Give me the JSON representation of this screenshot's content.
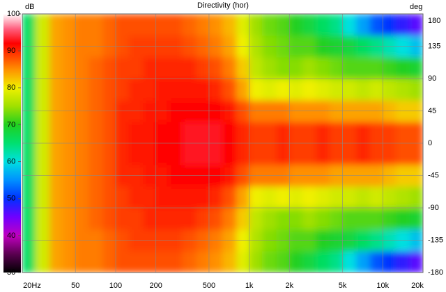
{
  "chart_data": {
    "type": "heatmap",
    "title": "Directivity (hor)",
    "colorbar_label": "dB",
    "y_label": "deg",
    "xscale": "log",
    "grid": true,
    "x_edges": [
      20,
      25,
      32,
      40,
      50,
      63,
      80,
      100,
      125,
      160,
      200,
      250,
      315,
      400,
      500,
      630,
      800,
      1000,
      1250,
      1600,
      2000,
      2500,
      3150,
      4000,
      5000,
      6300,
      8000,
      10000,
      12500,
      16000,
      20000
    ],
    "y_edges": [
      -180,
      -150,
      -120,
      -90,
      -60,
      -30,
      0,
      30,
      60,
      90,
      120,
      150,
      180
    ],
    "z": [
      [
        66,
        78,
        84,
        85,
        86,
        86,
        87,
        88,
        88,
        88,
        88,
        88,
        87,
        86,
        85,
        83,
        79,
        75,
        73,
        72,
        70,
        68,
        66,
        64,
        60,
        56,
        52,
        50,
        48,
        46
      ],
      [
        66,
        78,
        84,
        85,
        86,
        86,
        87,
        88,
        89,
        89,
        89,
        89,
        88,
        87,
        86,
        84,
        80,
        76,
        74,
        73,
        72,
        72,
        70,
        69,
        68,
        66,
        64,
        62,
        60,
        58
      ],
      [
        66,
        78,
        84,
        85,
        86,
        87,
        88,
        89,
        89,
        90,
        90,
        90,
        90,
        89,
        88,
        86,
        82,
        77,
        75,
        74,
        74,
        75,
        74,
        73,
        72,
        72,
        72,
        71,
        70,
        69
      ],
      [
        66,
        78,
        84,
        85,
        86,
        87,
        88,
        89,
        90,
        90,
        91,
        91,
        91,
        91,
        90,
        88,
        84,
        80,
        79,
        80,
        79,
        80,
        79,
        78,
        78,
        77,
        78,
        77,
        76,
        75
      ],
      [
        66,
        78,
        84,
        85,
        86,
        87,
        88,
        90,
        90,
        91,
        91,
        92,
        92,
        92,
        92,
        91,
        88,
        86,
        86,
        86,
        85,
        85,
        85,
        84,
        84,
        84,
        84,
        83,
        82,
        82
      ],
      [
        66,
        78,
        84,
        85,
        86,
        87,
        88,
        90,
        91,
        91,
        92,
        92,
        93,
        93,
        93,
        92,
        90,
        89,
        89,
        90,
        89,
        89,
        90,
        89,
        89,
        90,
        89,
        89,
        88,
        88
      ],
      [
        66,
        78,
        84,
        85,
        86,
        87,
        88,
        90,
        91,
        91,
        92,
        92,
        93,
        93,
        93,
        92,
        90,
        89,
        89,
        90,
        89,
        89,
        90,
        89,
        89,
        90,
        89,
        89,
        88,
        88
      ],
      [
        66,
        78,
        84,
        85,
        86,
        87,
        88,
        90,
        90,
        91,
        91,
        92,
        92,
        92,
        92,
        91,
        88,
        86,
        86,
        86,
        85,
        85,
        85,
        84,
        84,
        84,
        84,
        83,
        82,
        82
      ],
      [
        66,
        78,
        84,
        85,
        86,
        87,
        88,
        89,
        90,
        90,
        91,
        91,
        91,
        91,
        90,
        88,
        84,
        80,
        79,
        80,
        79,
        80,
        79,
        78,
        78,
        77,
        78,
        77,
        76,
        75
      ],
      [
        66,
        78,
        84,
        85,
        86,
        87,
        88,
        89,
        89,
        90,
        90,
        90,
        90,
        89,
        88,
        86,
        82,
        77,
        75,
        74,
        74,
        75,
        74,
        73,
        72,
        72,
        72,
        71,
        70,
        69
      ],
      [
        66,
        78,
        84,
        85,
        86,
        86,
        87,
        88,
        89,
        89,
        89,
        89,
        88,
        87,
        86,
        84,
        80,
        76,
        74,
        73,
        72,
        72,
        70,
        69,
        68,
        66,
        64,
        62,
        60,
        58
      ],
      [
        66,
        78,
        84,
        85,
        86,
        86,
        87,
        88,
        88,
        88,
        88,
        88,
        87,
        86,
        85,
        83,
        79,
        75,
        73,
        72,
        70,
        68,
        66,
        64,
        60,
        56,
        52,
        50,
        48,
        46
      ]
    ],
    "xlim": [
      20,
      20000
    ],
    "xticks": [
      {
        "value": 20,
        "label": "20Hz"
      },
      50,
      100,
      200,
      500,
      {
        "value": 1000,
        "label": "1k"
      },
      {
        "value": 2000,
        "label": "2k"
      },
      {
        "value": 5000,
        "label": "5k"
      },
      {
        "value": 10000,
        "label": "10k"
      },
      {
        "value": 20000,
        "label": "20k"
      }
    ],
    "ylim": [
      -180,
      180
    ],
    "yticks": [
      180,
      135,
      90,
      45,
      0,
      -45,
      -90,
      -135,
      -180
    ],
    "clim": [
      30,
      100
    ],
    "cticks": [
      100,
      90,
      80,
      70,
      60,
      50,
      40,
      30
    ],
    "colorscale": [
      [
        30,
        "#000000"
      ],
      [
        35,
        "#5a0050"
      ],
      [
        40,
        "#c000c0"
      ],
      [
        45,
        "#7000ff"
      ],
      [
        50,
        "#0030ff"
      ],
      [
        55,
        "#0090ff"
      ],
      [
        60,
        "#00e0e0"
      ],
      [
        65,
        "#00e070"
      ],
      [
        70,
        "#20d020"
      ],
      [
        75,
        "#a0e000"
      ],
      [
        80,
        "#f0f000"
      ],
      [
        85,
        "#ff9000"
      ],
      [
        88,
        "#ff5000"
      ],
      [
        92,
        "#ff0000"
      ],
      [
        96,
        "#ff6080"
      ],
      [
        100,
        "#ffffff"
      ]
    ]
  }
}
